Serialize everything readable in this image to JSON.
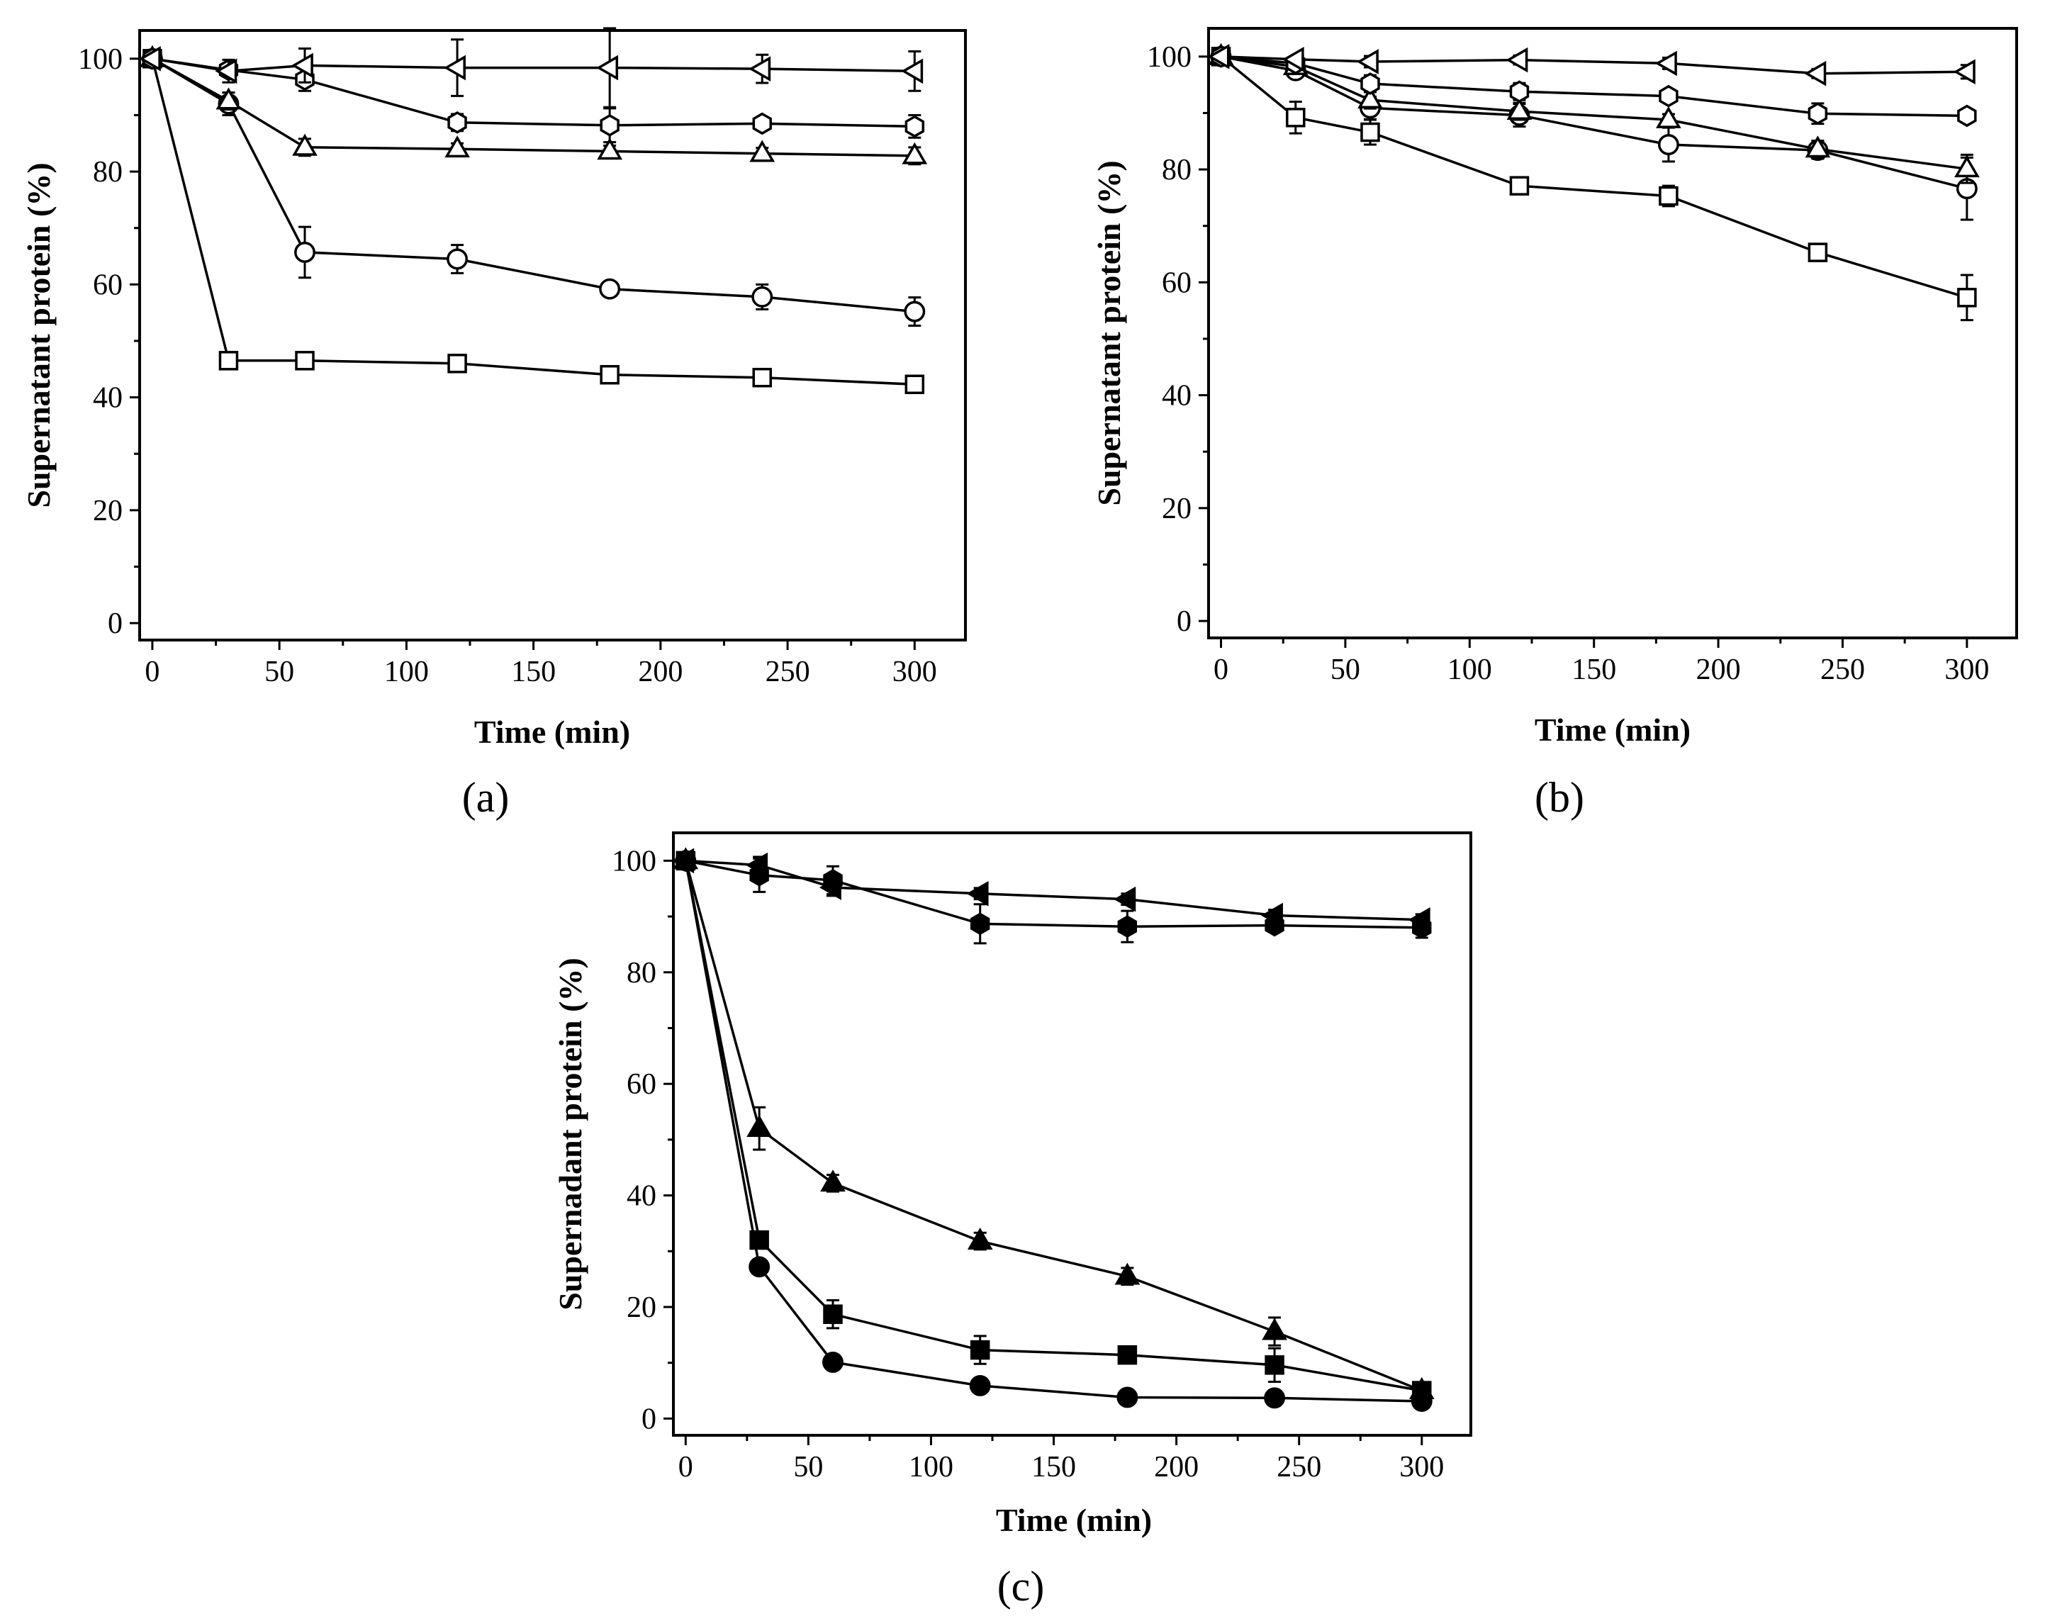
{
  "chart_data": [
    {
      "panel_label": "(a)",
      "type": "line",
      "xlabel": "Time (min)",
      "ylabel": "Supernatant protein (%)",
      "xlim": [
        -5,
        320
      ],
      "ylim": [
        -3,
        105
      ],
      "xticks": [
        0,
        50,
        100,
        150,
        200,
        250,
        300
      ],
      "yticks": [
        0,
        20,
        40,
        60,
        80,
        100
      ],
      "series": [
        {
          "marker": "square",
          "filled": false,
          "x": [
            0,
            30,
            60,
            120,
            180,
            240,
            300
          ],
          "y": [
            100,
            46.5,
            46.5,
            46,
            44,
            43.5,
            42.3
          ],
          "err": [
            0,
            0.6,
            0.6,
            0.6,
            1.2,
            0.6,
            0.6
          ]
        },
        {
          "marker": "circle",
          "filled": false,
          "x": [
            0,
            30,
            60,
            120,
            180,
            240,
            300
          ],
          "y": [
            100,
            92,
            65.7,
            64.5,
            59.2,
            57.8,
            55.2
          ],
          "err": [
            0,
            2,
            4.5,
            2.5,
            0.8,
            2.2,
            2.5
          ]
        },
        {
          "marker": "triangle-up",
          "filled": false,
          "x": [
            0,
            30,
            60,
            120,
            180,
            240,
            300
          ],
          "y": [
            100,
            92.5,
            84.3,
            84,
            83.6,
            83.2,
            82.8
          ],
          "err": [
            0,
            1.5,
            1.5,
            1,
            1,
            1,
            1.5
          ]
        },
        {
          "marker": "hexagon",
          "filled": false,
          "x": [
            0,
            30,
            60,
            120,
            180,
            240,
            300
          ],
          "y": [
            100,
            98,
            96.3,
            88.7,
            88.2,
            88.5,
            88
          ],
          "err": [
            0,
            1.2,
            2,
            1.5,
            3,
            1,
            2
          ]
        },
        {
          "marker": "triangle-left",
          "filled": false,
          "x": [
            0,
            30,
            60,
            120,
            180,
            240,
            300
          ],
          "y": [
            100,
            97.8,
            98.8,
            98.4,
            98.4,
            98.2,
            97.8
          ],
          "err": [
            0,
            2,
            3,
            5,
            7,
            2.5,
            3.5
          ]
        }
      ]
    },
    {
      "panel_label": "(b)",
      "type": "line",
      "xlabel": "Time (min)",
      "ylabel": "Supernatant protein (%)",
      "xlim": [
        -5,
        320
      ],
      "ylim": [
        -3,
        105
      ],
      "xticks": [
        0,
        50,
        100,
        150,
        200,
        250,
        300
      ],
      "yticks": [
        0,
        20,
        40,
        60,
        80,
        100
      ],
      "series": [
        {
          "marker": "square",
          "filled": false,
          "x": [
            0,
            30,
            60,
            120,
            180,
            240,
            300
          ],
          "y": [
            100,
            89.2,
            86.6,
            77.1,
            75.3,
            65.3,
            57.3
          ],
          "err": [
            0,
            2.8,
            2.2,
            0.6,
            1.8,
            1.1,
            4
          ]
        },
        {
          "marker": "circle",
          "filled": false,
          "x": [
            0,
            30,
            60,
            120,
            180,
            240,
            300
          ],
          "y": [
            100,
            97.5,
            90.9,
            89.6,
            84.4,
            83.4,
            76.6
          ],
          "err": [
            0,
            1,
            2,
            2,
            3,
            1.5,
            5.5
          ]
        },
        {
          "marker": "triangle-up",
          "filled": false,
          "x": [
            0,
            30,
            60,
            120,
            180,
            240,
            300
          ],
          "y": [
            100,
            98.2,
            92.3,
            90.3,
            88.8,
            83.6,
            80.1
          ],
          "err": [
            0,
            1,
            1.5,
            1.5,
            1,
            1.5,
            2.5
          ]
        },
        {
          "marker": "hexagon",
          "filled": false,
          "x": [
            0,
            30,
            60,
            120,
            180,
            240,
            300
          ],
          "y": [
            100,
            98.8,
            95.2,
            93.8,
            93,
            89.9,
            89.5
          ],
          "err": [
            0,
            1,
            1.5,
            1.5,
            1,
            1.8,
            1
          ]
        },
        {
          "marker": "triangle-left",
          "filled": false,
          "x": [
            0,
            30,
            60,
            120,
            180,
            240,
            300
          ],
          "y": [
            100,
            99.5,
            99.1,
            99.4,
            98.8,
            97,
            97.3
          ],
          "err": [
            0,
            0.5,
            1,
            0.8,
            1,
            0.8,
            1.2
          ]
        }
      ]
    },
    {
      "panel_label": "(c)",
      "type": "line",
      "xlabel": "Time (min)",
      "ylabel": "Supernadant protein (%)",
      "xlim": [
        -5,
        320
      ],
      "ylim": [
        -3,
        105
      ],
      "xticks": [
        0,
        50,
        100,
        150,
        200,
        250,
        300
      ],
      "yticks": [
        0,
        20,
        40,
        60,
        80,
        100
      ],
      "series": [
        {
          "marker": "square",
          "filled": true,
          "x": [
            0,
            30,
            60,
            120,
            180,
            240,
            300
          ],
          "y": [
            100,
            32,
            18.7,
            12.3,
            11.4,
            9.6,
            5
          ],
          "err": [
            0,
            1.5,
            2.5,
            2.5,
            0.5,
            3,
            1
          ]
        },
        {
          "marker": "circle",
          "filled": true,
          "x": [
            0,
            30,
            60,
            120,
            180,
            240,
            300
          ],
          "y": [
            100,
            27.2,
            10.1,
            5.9,
            3.8,
            3.7,
            3.1
          ],
          "err": [
            0,
            1,
            0.5,
            0.5,
            0.5,
            0.5,
            0.5
          ]
        },
        {
          "marker": "triangle-up",
          "filled": true,
          "x": [
            0,
            30,
            60,
            120,
            180,
            240,
            300
          ],
          "y": [
            100,
            52,
            42.2,
            31.8,
            25.5,
            15.6,
            5
          ],
          "err": [
            0,
            3.8,
            1.5,
            1.5,
            1.5,
            2.5,
            1
          ]
        },
        {
          "marker": "hexagon",
          "filled": true,
          "x": [
            0,
            30,
            60,
            120,
            180,
            240,
            300
          ],
          "y": [
            100,
            97.4,
            96.5,
            88.7,
            88.2,
            88.4,
            88
          ],
          "err": [
            0,
            3,
            2.5,
            3.5,
            2.8,
            1,
            1.8
          ]
        },
        {
          "marker": "triangle-left",
          "filled": true,
          "x": [
            0,
            30,
            60,
            120,
            180,
            240,
            300
          ],
          "y": [
            100,
            99.2,
            95.2,
            94.1,
            93.1,
            90.2,
            89.4
          ],
          "err": [
            0,
            1.5,
            1.5,
            1,
            1,
            1,
            1
          ]
        }
      ]
    }
  ]
}
